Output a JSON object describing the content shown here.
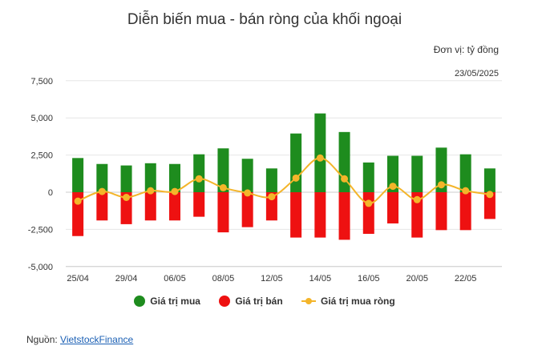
{
  "header": {
    "title": "Diễn biến mua - bán ròng của khối ngoại",
    "unit": "Đơn vị: tỷ đồng",
    "date": "23/05/2025"
  },
  "legend": {
    "buy": "Giá trị mua",
    "sell": "Giá trị bán",
    "net": "Giá trị mua ròng"
  },
  "source": {
    "label": "Nguồn:",
    "link": "VietstockFinance"
  },
  "colors": {
    "buy": "#1e8c1e",
    "sell": "#ee1111",
    "net": "#f4b52a",
    "grid": "#e6e6e6"
  },
  "chart_data": {
    "type": "bar",
    "categories": [
      "25/04",
      "28/04",
      "29/04",
      "05/05",
      "06/05",
      "07/05",
      "08/05",
      "09/05",
      "12/05",
      "13/05",
      "14/05",
      "15/05",
      "16/05",
      "19/05",
      "20/05",
      "21/05",
      "22/05",
      "23/05"
    ],
    "x_tick_labels": [
      "25/04",
      "29/04",
      "06/05",
      "08/05",
      "12/05",
      "14/05",
      "16/05",
      "20/05",
      "22/05"
    ],
    "x_tick_label_positions": [
      0,
      2,
      4,
      6,
      8,
      10,
      12,
      14,
      16
    ],
    "series": [
      {
        "name": "Giá trị mua",
        "kind": "bar",
        "values": [
          2300,
          1900,
          1800,
          1950,
          1900,
          2550,
          2950,
          2250,
          1600,
          3950,
          5300,
          4050,
          2000,
          2450,
          2450,
          3000,
          2550,
          1600
        ]
      },
      {
        "name": "Giá trị bán",
        "kind": "bar",
        "values": [
          -2950,
          -1900,
          -2150,
          -1900,
          -1900,
          -1650,
          -2700,
          -2350,
          -1900,
          -3050,
          -3050,
          -3200,
          -2800,
          -2100,
          -3050,
          -2550,
          -2550,
          -1800
        ]
      },
      {
        "name": "Giá trị mua ròng",
        "kind": "line",
        "values": [
          -600,
          50,
          -350,
          100,
          50,
          900,
          300,
          -50,
          -300,
          950,
          2300,
          900,
          -750,
          400,
          -500,
          500,
          100,
          -150
        ]
      }
    ],
    "yticks": [
      -5000,
      -2500,
      0,
      2500,
      5000,
      7500
    ],
    "ytick_labels": [
      "-5,000",
      "-2,500",
      "0",
      "2,500",
      "5,000",
      "7,500"
    ],
    "ylim": [
      -5000,
      7500
    ],
    "grid": true,
    "legend_position": "bottom"
  }
}
